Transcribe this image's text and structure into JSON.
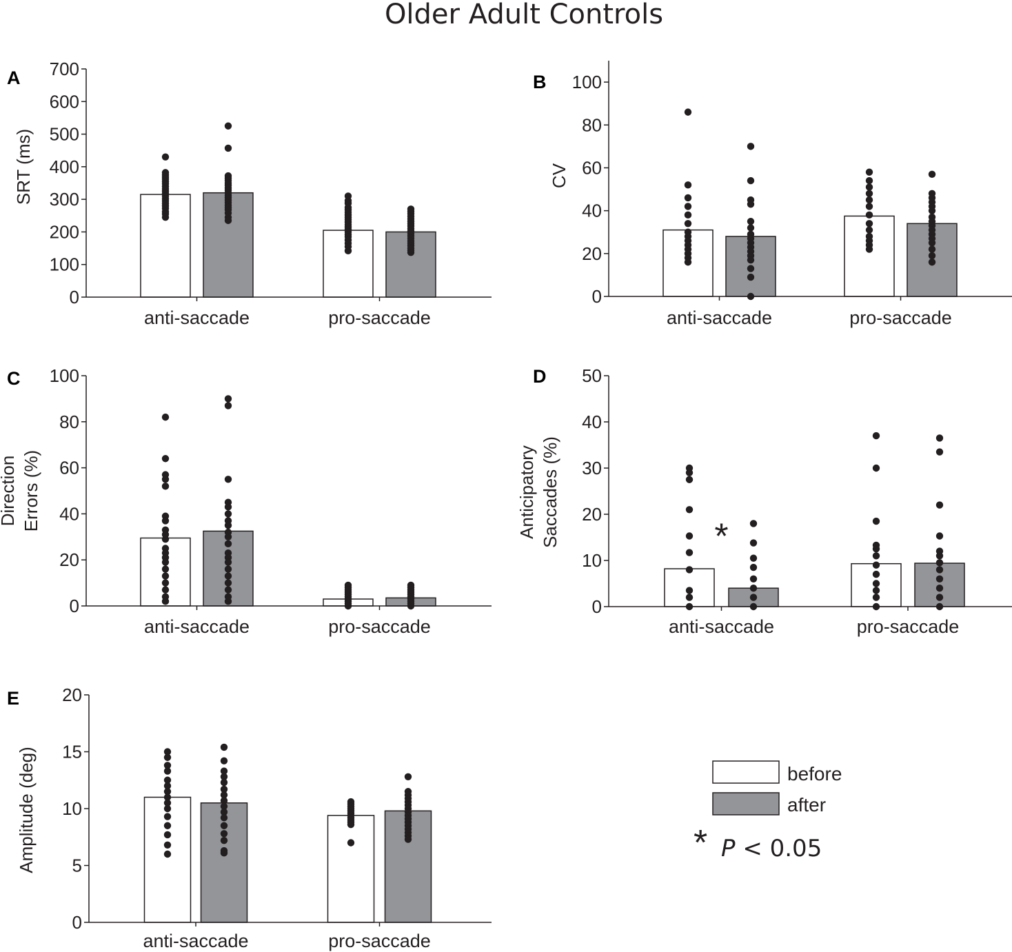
{
  "title": "Older Adult Controls",
  "legend": {
    "before": "before",
    "after": "after",
    "significance_symbol": "*",
    "significance_italic": "P",
    "significance_text": " < 0.05"
  },
  "colors": {
    "before": "#ffffff",
    "after": "#939598",
    "ink": "#231f20"
  },
  "chart_data": [
    {
      "panel": "A",
      "type": "bar",
      "ylabel": "SRT (ms)",
      "categories": [
        "anti-saccade",
        "pro-saccade"
      ],
      "ylim": [
        0,
        700
      ],
      "yticks": [
        0,
        100,
        200,
        300,
        400,
        500,
        600,
        700
      ],
      "series": [
        {
          "name": "before",
          "values": [
            315,
            205
          ],
          "points": [
            [
              430,
              382,
              375,
              368,
              362,
              355,
              348,
              340,
              332,
              325,
              318,
              310,
              302,
              295,
              287,
              280,
              272,
              262,
              255,
              245
            ],
            [
              310,
              296,
              288,
              275,
              268,
              260,
              252,
              245,
              238,
              230,
              222,
              215,
              208,
              200,
              192,
              185,
              175,
              165,
              155,
              142
            ]
          ]
        },
        {
          "name": "after",
          "values": [
            320,
            200
          ],
          "points": [
            [
              525,
              457,
              372,
              365,
              358,
              350,
              343,
              335,
              328,
              320,
              312,
              305,
              298,
              290,
              282,
              275,
              268,
              258,
              245,
              235
            ],
            [
              270,
              263,
              256,
              248,
              240,
              232,
              225,
              218,
              210,
              202,
              195,
              188,
              180,
              172,
              165,
              158,
              150,
              143,
              137
            ]
          ]
        }
      ],
      "annotations": []
    },
    {
      "panel": "B",
      "type": "bar",
      "ylabel": "CV",
      "categories": [
        "anti-saccade",
        "pro-saccade"
      ],
      "ylim": [
        0,
        110
      ],
      "yticks": [
        0,
        20,
        40,
        60,
        80,
        100
      ],
      "series": [
        {
          "name": "before",
          "values": [
            31,
            37.5
          ],
          "points": [
            [
              86,
              52,
              46,
              42,
              38,
              34,
              30,
              28,
              26,
              24,
              22,
              20,
              18,
              16
            ],
            [
              58,
              54,
              51,
              48,
              45,
              42,
              38,
              34,
              31,
              28,
              26,
              24,
              22
            ]
          ]
        },
        {
          "name": "after",
          "values": [
            28,
            34
          ],
          "points": [
            [
              70,
              54,
              45,
              43,
              35,
              32,
              29,
              27,
              25,
              23,
              21,
              19,
              17,
              13,
              9,
              0
            ],
            [
              57,
              48,
              46,
              44,
              42,
              40,
              37,
              35,
              33,
              31,
              29,
              27,
              25,
              22,
              19,
              16
            ]
          ]
        }
      ],
      "annotations": []
    },
    {
      "panel": "C",
      "type": "bar",
      "ylabel": [
        "Direction",
        "Errors (%)"
      ],
      "categories": [
        "anti-saccade",
        "pro-saccade"
      ],
      "ylim": [
        0,
        100
      ],
      "yticks": [
        0,
        20,
        40,
        60,
        80,
        100
      ],
      "series": [
        {
          "name": "before",
          "values": [
            29.5,
            3
          ],
          "points": [
            [
              82,
              64,
              57,
              55,
              52,
              39,
              37,
              33,
              31,
              29,
              25,
              23,
              21,
              19,
              16,
              13,
              10,
              7,
              4,
              2
            ],
            [
              9,
              8,
              7,
              6,
              5,
              4,
              3,
              2,
              1,
              0
            ]
          ]
        },
        {
          "name": "after",
          "values": [
            32.5,
            3.5
          ],
          "points": [
            [
              90,
              87,
              55,
              45,
              43,
              40,
              37,
              35,
              32,
              30,
              27,
              23,
              21,
              19,
              16,
              13,
              10,
              7,
              4,
              2
            ],
            [
              9,
              8,
              7,
              6,
              5,
              4,
              3,
              2,
              1,
              0
            ]
          ]
        }
      ],
      "annotations": []
    },
    {
      "panel": "D",
      "type": "bar",
      "ylabel": [
        "Anticipatory",
        "Saccades (%)"
      ],
      "categories": [
        "anti-saccade",
        "pro-saccade"
      ],
      "ylim": [
        0,
        50
      ],
      "yticks": [
        0,
        10,
        20,
        30,
        40,
        50
      ],
      "series": [
        {
          "name": "before",
          "values": [
            8.2,
            9.3
          ],
          "points": [
            [
              30,
              29,
              27.5,
              21,
              15.3,
              11.7,
              8,
              3.5,
              2,
              0
            ],
            [
              37,
              30,
              18.5,
              13.3,
              12.5,
              11,
              9,
              7,
              5,
              3.5,
              2,
              0
            ]
          ]
        },
        {
          "name": "after",
          "values": [
            4,
            9.4
          ],
          "points": [
            [
              18,
              13.8,
              10.5,
              8.5,
              6,
              4,
              2,
              0
            ],
            [
              36.5,
              33.5,
              22,
              15.3,
              12,
              11,
              9.5,
              8,
              6,
              4,
              2,
              0
            ]
          ]
        }
      ],
      "annotations": [
        {
          "text": "*",
          "category": 0,
          "value": 18
        }
      ]
    },
    {
      "panel": "E",
      "type": "bar",
      "ylabel": "Amplitude (deg)",
      "categories": [
        "anti-saccade",
        "pro-saccade"
      ],
      "ylim": [
        0,
        20
      ],
      "yticks": [
        0,
        5,
        10,
        15,
        20
      ],
      "series": [
        {
          "name": "before",
          "values": [
            11,
            9.4
          ],
          "points": [
            [
              15,
              14.5,
              13.8,
              13.3,
              12.5,
              12,
              11.5,
              11,
              10.5,
              10,
              9.3,
              8.5,
              7.7,
              6.8,
              6
            ],
            [
              10.6,
              10.4,
              10.2,
              10,
              9.8,
              9.6,
              9.4,
              9.2,
              9,
              8.8,
              8.6,
              7
            ]
          ]
        },
        {
          "name": "after",
          "values": [
            10.5,
            9.8
          ],
          "points": [
            [
              15.4,
              14.2,
              13.3,
              12.8,
              12.3,
              11.7,
              11.2,
              10.7,
              10.2,
              9.7,
              9.2,
              8.5,
              7.8,
              7.2,
              6.3,
              6.1
            ],
            [
              12.8,
              11.5,
              11.2,
              10.9,
              10.6,
              10.3,
              10,
              9.7,
              9.4,
              9.1,
              8.8,
              8.5,
              8.2,
              7.9,
              7.6,
              7.3
            ]
          ]
        }
      ],
      "annotations": []
    }
  ]
}
